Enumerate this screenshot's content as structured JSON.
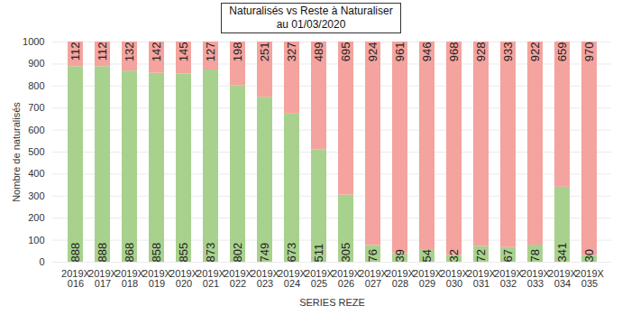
{
  "chart_data": {
    "type": "bar",
    "title": "Naturalisés vs Reste à Naturaliser",
    "subtitle": "au 01/03/2020",
    "x_label": "SERIES REZE",
    "y_label": "Nombre de naturalisés",
    "categories": [
      "2019X\n016",
      "2019X\n017",
      "2019X\n018",
      "2019X\n019",
      "2019X\n020",
      "2019X\n021",
      "2019X\n022",
      "2019X\n023",
      "2019X\n024",
      "2019X\n025",
      "2019X\n026",
      "2019X\n027",
      "2019X\n028",
      "2019X\n029",
      "2019X\n030",
      "2019X\n031",
      "2019X\n032",
      "2019X\n033",
      "2019X\n034",
      "2019X\n035"
    ],
    "series": [
      {
        "color": "#a9d18e",
        "values": [
          888,
          888,
          868,
          858,
          855,
          873,
          802,
          749,
          673,
          511,
          305,
          76,
          39,
          54,
          32,
          72,
          67,
          78,
          341,
          30
        ]
      },
      {
        "color": "#f4a39e",
        "values": [
          112,
          112,
          132,
          142,
          145,
          127,
          198,
          251,
          327,
          489,
          695,
          924,
          961,
          946,
          968,
          928,
          933,
          922,
          659,
          970
        ]
      }
    ],
    "stacked": true,
    "data_labels": true,
    "grid": true,
    "ylim": [
      0,
      1000
    ],
    "yticks": [
      0,
      100,
      200,
      300,
      400,
      500,
      600,
      700,
      800,
      900,
      1000
    ]
  }
}
